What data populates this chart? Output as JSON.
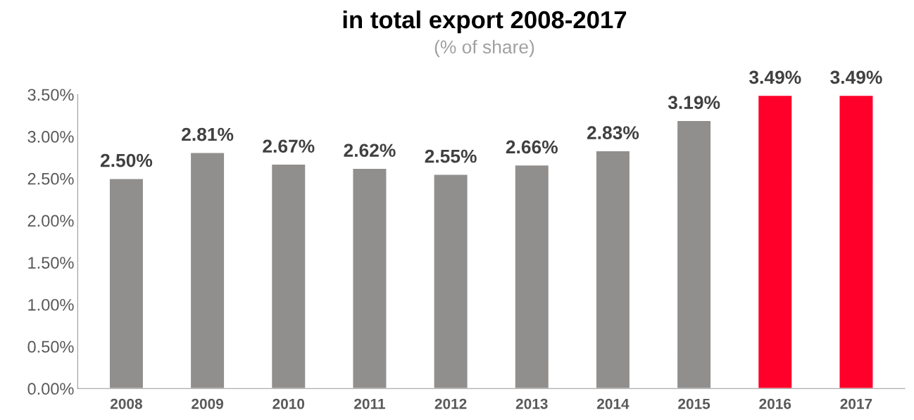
{
  "chart_data": {
    "type": "bar",
    "title": "in total export 2008-2017",
    "subtitle": "(% of share)",
    "categories": [
      "2008",
      "2009",
      "2010",
      "2011",
      "2012",
      "2013",
      "2014",
      "2015",
      "2016",
      "2017"
    ],
    "values": [
      2.5,
      2.81,
      2.67,
      2.62,
      2.55,
      2.66,
      2.83,
      3.19,
      3.49,
      3.49
    ],
    "colors": [
      "#918f8d",
      "#918f8d",
      "#918f8d",
      "#918f8d",
      "#918f8d",
      "#918f8d",
      "#918f8d",
      "#918f8d",
      "#ff002b",
      "#ff002b"
    ],
    "value_labels": [
      "2.50%",
      "2.81%",
      "2.67%",
      "2.62%",
      "2.55%",
      "2.66%",
      "2.83%",
      "3.19%",
      "3.49%",
      "3.49%"
    ],
    "ylim": [
      0,
      3.5
    ],
    "yticks": [
      {
        "value": 0,
        "label": "0.00%"
      },
      {
        "value": 0.5,
        "label": "0.50%"
      },
      {
        "value": 1,
        "label": "1.00%"
      },
      {
        "value": 1.5,
        "label": "1.50%"
      },
      {
        "value": 2,
        "label": "2.00%"
      },
      {
        "value": 2.5,
        "label": "2.50%"
      },
      {
        "value": 3,
        "label": "3.00%"
      },
      {
        "value": 3.5,
        "label": "3.50%"
      }
    ],
    "grid": false
  }
}
